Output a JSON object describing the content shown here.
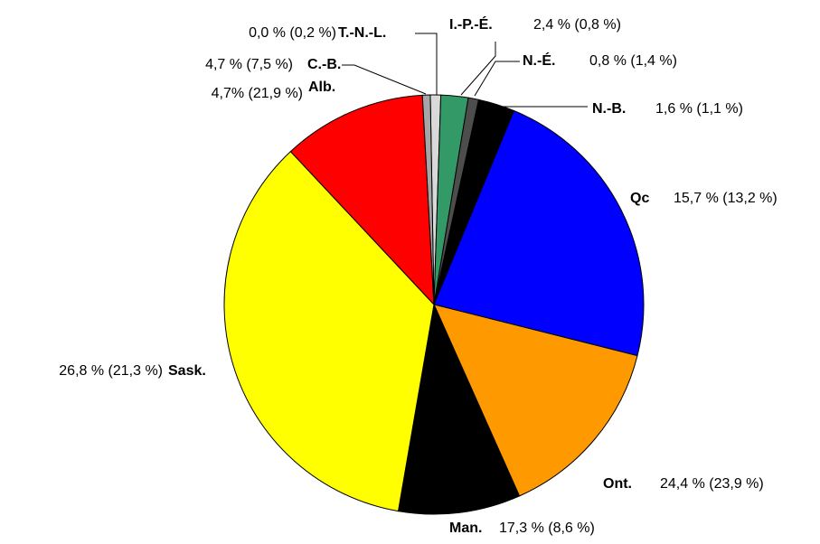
{
  "chart_data": {
    "type": "pie",
    "labels": [
      "T.-N.-L.",
      "I.-P.-É.",
      "N.-É.",
      "N.-B.",
      "Qc",
      "Ont.",
      "Man.",
      "Sask.",
      "Alb.",
      "C.-B."
    ],
    "values": [
      0.8,
      2.1,
      0.8,
      2.8,
      22.7,
      14.4,
      9.4,
      35.3,
      11.1,
      0.6
    ],
    "annotations": [
      "0,0 % (0,2 %)",
      "2,4 % (0,8 %)",
      "0,8 % (1,4 %)",
      "1,6 % (1,1 %)",
      "15,7 % (13,2 %)",
      "24,4 % (23,9 %)",
      "17,3 % (8,6 %)",
      "26,8 % (21,3 %)",
      "4,7% (21,9 %)",
      "4,7 % (7,5 %)"
    ],
    "colors": [
      "#d9d9d9",
      "#339966",
      "#4d4d4d",
      "#000000",
      "#0000ff",
      "#ff9900",
      "#000000",
      "#ffff00",
      "#ff0000",
      "#a6a6a6"
    ]
  }
}
